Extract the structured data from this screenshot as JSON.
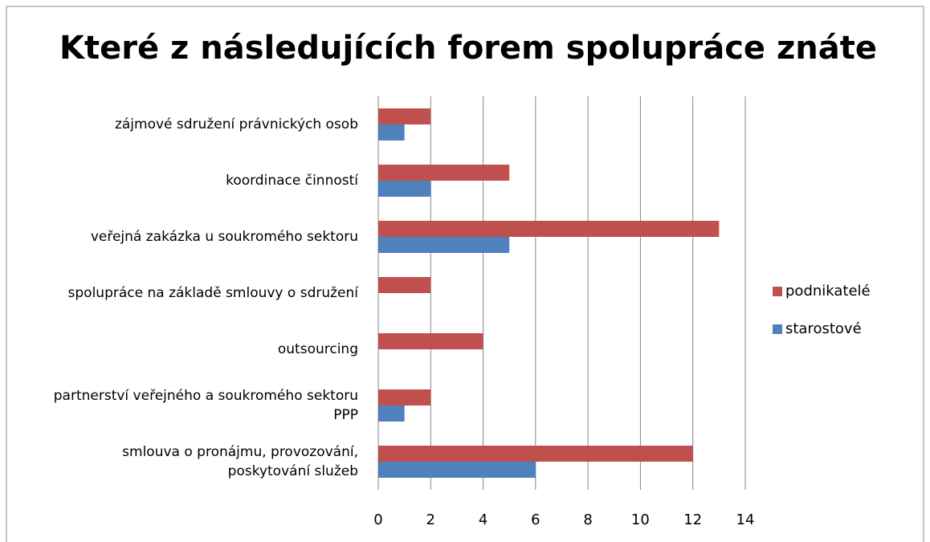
{
  "chart_data": {
    "type": "bar",
    "orientation": "horizontal",
    "title": "Které z následujících forem spolupráce znáte",
    "categories": [
      "zájmové sdružení právnických osob",
      "koordinace činností",
      "veřejná zakázka u soukromého sektoru",
      "spolupráce na základě smlouvy o sdružení",
      "outsourcing",
      "partnerství veřejného a soukromého sektoru PPP",
      "smlouva o pronájmu, provozování, poskytování služeb"
    ],
    "series": [
      {
        "name": "podnikatelé",
        "color": "#c0504d",
        "values": [
          2,
          5,
          13,
          2,
          4,
          2,
          12
        ]
      },
      {
        "name": "starostové",
        "color": "#4f81bd",
        "values": [
          1,
          2,
          5,
          0,
          0,
          1,
          6
        ]
      }
    ],
    "xlim": [
      0,
      14
    ],
    "xticks": [
      0,
      2,
      4,
      6,
      8,
      10,
      12,
      14
    ],
    "grid": true,
    "legend": "right"
  }
}
